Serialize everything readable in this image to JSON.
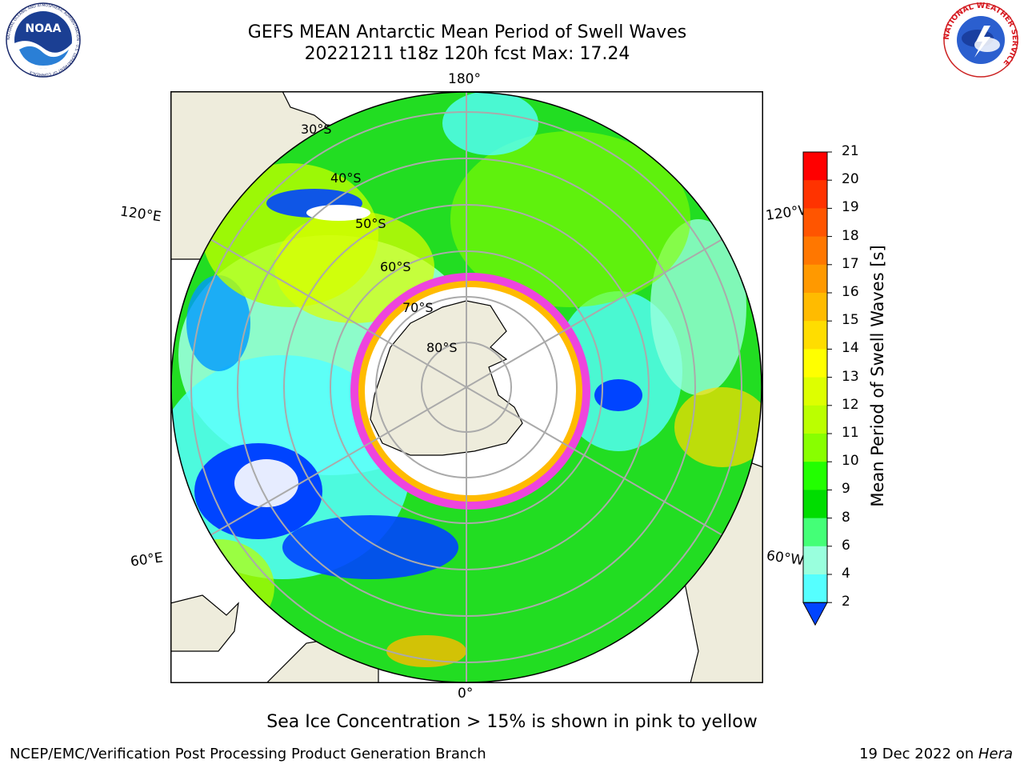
{
  "header": {
    "title_line1": "GEFS MEAN Antarctic Mean Period of Swell Waves",
    "title_line2": "20221211 t18z 120h fcst   Max: 17.24"
  },
  "logos": {
    "noaa_text": "NOAA",
    "noaa_ring_text": "NATIONAL OCEANIC AND ATMOSPHERIC ADMINISTRATION · U.S. DEPARTMENT OF COMMERCE",
    "nws_ring_text": "NATIONAL WEATHER SERVICE"
  },
  "map": {
    "lon_labels": {
      "top": "180°",
      "bottom": "0°",
      "upper_left": "120°E",
      "upper_right": "120°W",
      "lower_left": "60°E",
      "lower_right": "60°W"
    },
    "lat_labels": [
      "30°S",
      "40°S",
      "50°S",
      "60°S",
      "70°S",
      "80°S"
    ],
    "colors": {
      "land": "#eeecdc",
      "ocean_green": "#22dd22",
      "ice_pink": "#ee44dd",
      "ice_white": "#ffffff",
      "grid": "#aaaaaa"
    }
  },
  "colorbar": {
    "title": "Mean Period of Swell Waves [s]",
    "ticks": [
      "21",
      "20",
      "19",
      "18",
      "17",
      "16",
      "15",
      "14",
      "13",
      "12",
      "11",
      "10",
      "9",
      "8",
      "6",
      "4",
      "2"
    ],
    "colors_top_to_bottom": [
      "#ff0000",
      "#ff3300",
      "#ff5500",
      "#ff7700",
      "#ff9900",
      "#ffbb00",
      "#ffdd00",
      "#ffff00",
      "#ddff00",
      "#bbff00",
      "#88ff00",
      "#22ff00",
      "#00dd00",
      "#44ff77",
      "#99ffdd",
      "#55ffff",
      "#00eeff",
      "#0099ff",
      "#0044ff"
    ]
  },
  "caption": "Sea Ice Concentration > 15% is shown in pink to yellow",
  "footer": {
    "left": "NCEP/EMC/Verification Post Processing Product Generation Branch",
    "right_prefix": "19 Dec 2022 on ",
    "right_machine": "Hera"
  }
}
